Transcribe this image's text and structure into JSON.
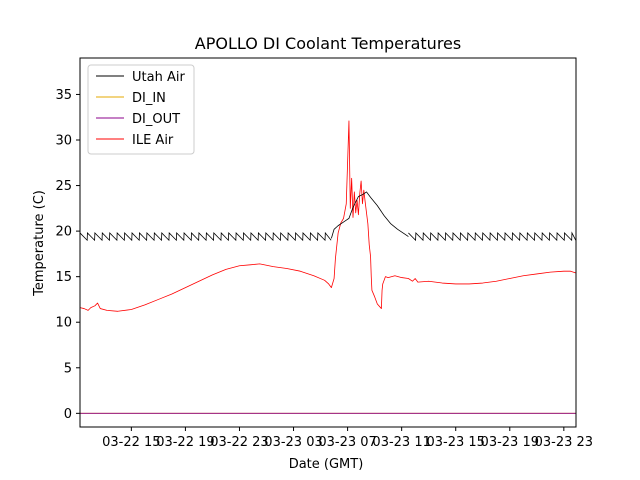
{
  "chart_data": {
    "type": "line",
    "title": "APOLLO DI Coolant Temperatures",
    "xlabel": "Date (GMT)",
    "ylabel": "Temperature (C)",
    "x_unit": "hours since 03-22 00:00 GMT",
    "xlim": [
      11.2,
      47.9
    ],
    "ylim": [
      -1.5,
      39.0
    ],
    "xticks": [
      {
        "value": 15,
        "label": "03-22 15"
      },
      {
        "value": 19,
        "label": "03-22 19"
      },
      {
        "value": 23,
        "label": "03-22 23"
      },
      {
        "value": 27,
        "label": "03-23 03"
      },
      {
        "value": 31,
        "label": "03-23 07"
      },
      {
        "value": 35,
        "label": "03-23 11"
      },
      {
        "value": 39,
        "label": "03-23 15"
      },
      {
        "value": 43,
        "label": "03-23 19"
      },
      {
        "value": 47,
        "label": "03-23 23"
      }
    ],
    "yticks": [
      {
        "value": 0,
        "label": "0"
      },
      {
        "value": 5,
        "label": "5"
      },
      {
        "value": 10,
        "label": "10"
      },
      {
        "value": 15,
        "label": "15"
      },
      {
        "value": 20,
        "label": "20"
      },
      {
        "value": 25,
        "label": "25"
      },
      {
        "value": 30,
        "label": "30"
      },
      {
        "value": 35,
        "label": "35"
      }
    ],
    "legend_position": "top-left",
    "series": [
      {
        "name": "Utah Air",
        "color": "#000000",
        "sawtooth": {
          "x_start": 11.2,
          "x_end": 29.8,
          "low": 19.0,
          "high": 19.8,
          "period": 0.55
        },
        "sawtooth2": {
          "x_start": 35.5,
          "x_end": 47.9,
          "low": 19.0,
          "high": 19.8,
          "period": 0.55
        },
        "points": [
          [
            29.8,
            19.2
          ],
          [
            30.0,
            20.2
          ],
          [
            30.3,
            20.6
          ],
          [
            30.6,
            20.9
          ],
          [
            30.9,
            21.2
          ],
          [
            31.1,
            21.4
          ],
          [
            31.4,
            22.6
          ],
          [
            31.8,
            23.8
          ],
          [
            32.1,
            24.0
          ],
          [
            32.4,
            24.3
          ],
          [
            32.7,
            23.7
          ],
          [
            33.2,
            22.8
          ],
          [
            33.7,
            21.7
          ],
          [
            34.2,
            20.8
          ],
          [
            34.7,
            20.2
          ],
          [
            35.2,
            19.7
          ],
          [
            35.5,
            19.4
          ]
        ]
      },
      {
        "name": "DI_IN",
        "color": "#e6a800",
        "points": [
          [
            11.2,
            0
          ],
          [
            47.9,
            0
          ]
        ]
      },
      {
        "name": "DI_OUT",
        "color": "#8b008b",
        "points": [
          [
            11.2,
            0
          ],
          [
            47.9,
            0
          ]
        ]
      },
      {
        "name": "ILE Air",
        "color": "#ff0000",
        "points": [
          [
            11.2,
            11.6
          ],
          [
            11.5,
            11.5
          ],
          [
            11.8,
            11.3
          ],
          [
            12.0,
            11.6
          ],
          [
            12.3,
            11.8
          ],
          [
            12.5,
            12.1
          ],
          [
            12.7,
            11.5
          ],
          [
            13.2,
            11.3
          ],
          [
            14.0,
            11.2
          ],
          [
            15.0,
            11.4
          ],
          [
            16.0,
            11.9
          ],
          [
            17.0,
            12.5
          ],
          [
            18.0,
            13.1
          ],
          [
            19.0,
            13.8
          ],
          [
            20.0,
            14.5
          ],
          [
            21.0,
            15.2
          ],
          [
            22.0,
            15.8
          ],
          [
            23.0,
            16.2
          ],
          [
            23.8,
            16.3
          ],
          [
            24.5,
            16.4
          ],
          [
            25.5,
            16.1
          ],
          [
            26.5,
            15.9
          ],
          [
            27.5,
            15.6
          ],
          [
            28.5,
            15.1
          ],
          [
            29.3,
            14.6
          ],
          [
            29.6,
            14.2
          ],
          [
            29.8,
            13.8
          ],
          [
            30.0,
            14.8
          ],
          [
            30.1,
            17.0
          ],
          [
            30.3,
            19.8
          ],
          [
            30.5,
            20.9
          ],
          [
            30.7,
            21.4
          ],
          [
            30.9,
            23.0
          ],
          [
            31.0,
            27.5
          ],
          [
            31.1,
            32.1
          ],
          [
            31.2,
            22.5
          ],
          [
            31.3,
            25.8
          ],
          [
            31.4,
            21.5
          ],
          [
            31.5,
            24.3
          ],
          [
            31.6,
            22.0
          ],
          [
            31.7,
            23.4
          ],
          [
            31.8,
            21.8
          ],
          [
            31.9,
            24.1
          ],
          [
            32.0,
            25.5
          ],
          [
            32.1,
            23.0
          ],
          [
            32.2,
            24.5
          ],
          [
            32.3,
            23.2
          ],
          [
            32.4,
            22.0
          ],
          [
            32.5,
            20.8
          ],
          [
            32.6,
            18.5
          ],
          [
            32.7,
            17.2
          ],
          [
            32.75,
            15.0
          ],
          [
            32.8,
            13.5
          ],
          [
            33.0,
            12.8
          ],
          [
            33.2,
            12.0
          ],
          [
            33.5,
            11.5
          ],
          [
            33.55,
            13.5
          ],
          [
            33.6,
            14.2
          ],
          [
            33.8,
            15.0
          ],
          [
            34.0,
            14.9
          ],
          [
            34.5,
            15.1
          ],
          [
            35.0,
            14.9
          ],
          [
            35.5,
            14.8
          ],
          [
            35.8,
            14.5
          ],
          [
            36.0,
            14.8
          ],
          [
            36.2,
            14.4
          ],
          [
            37.0,
            14.5
          ],
          [
            38.0,
            14.3
          ],
          [
            39.0,
            14.2
          ],
          [
            40.0,
            14.2
          ],
          [
            41.0,
            14.3
          ],
          [
            42.0,
            14.5
          ],
          [
            43.0,
            14.8
          ],
          [
            44.0,
            15.1
          ],
          [
            45.0,
            15.3
          ],
          [
            46.0,
            15.5
          ],
          [
            47.0,
            15.6
          ],
          [
            47.5,
            15.6
          ],
          [
            47.9,
            15.4
          ]
        ]
      }
    ]
  }
}
